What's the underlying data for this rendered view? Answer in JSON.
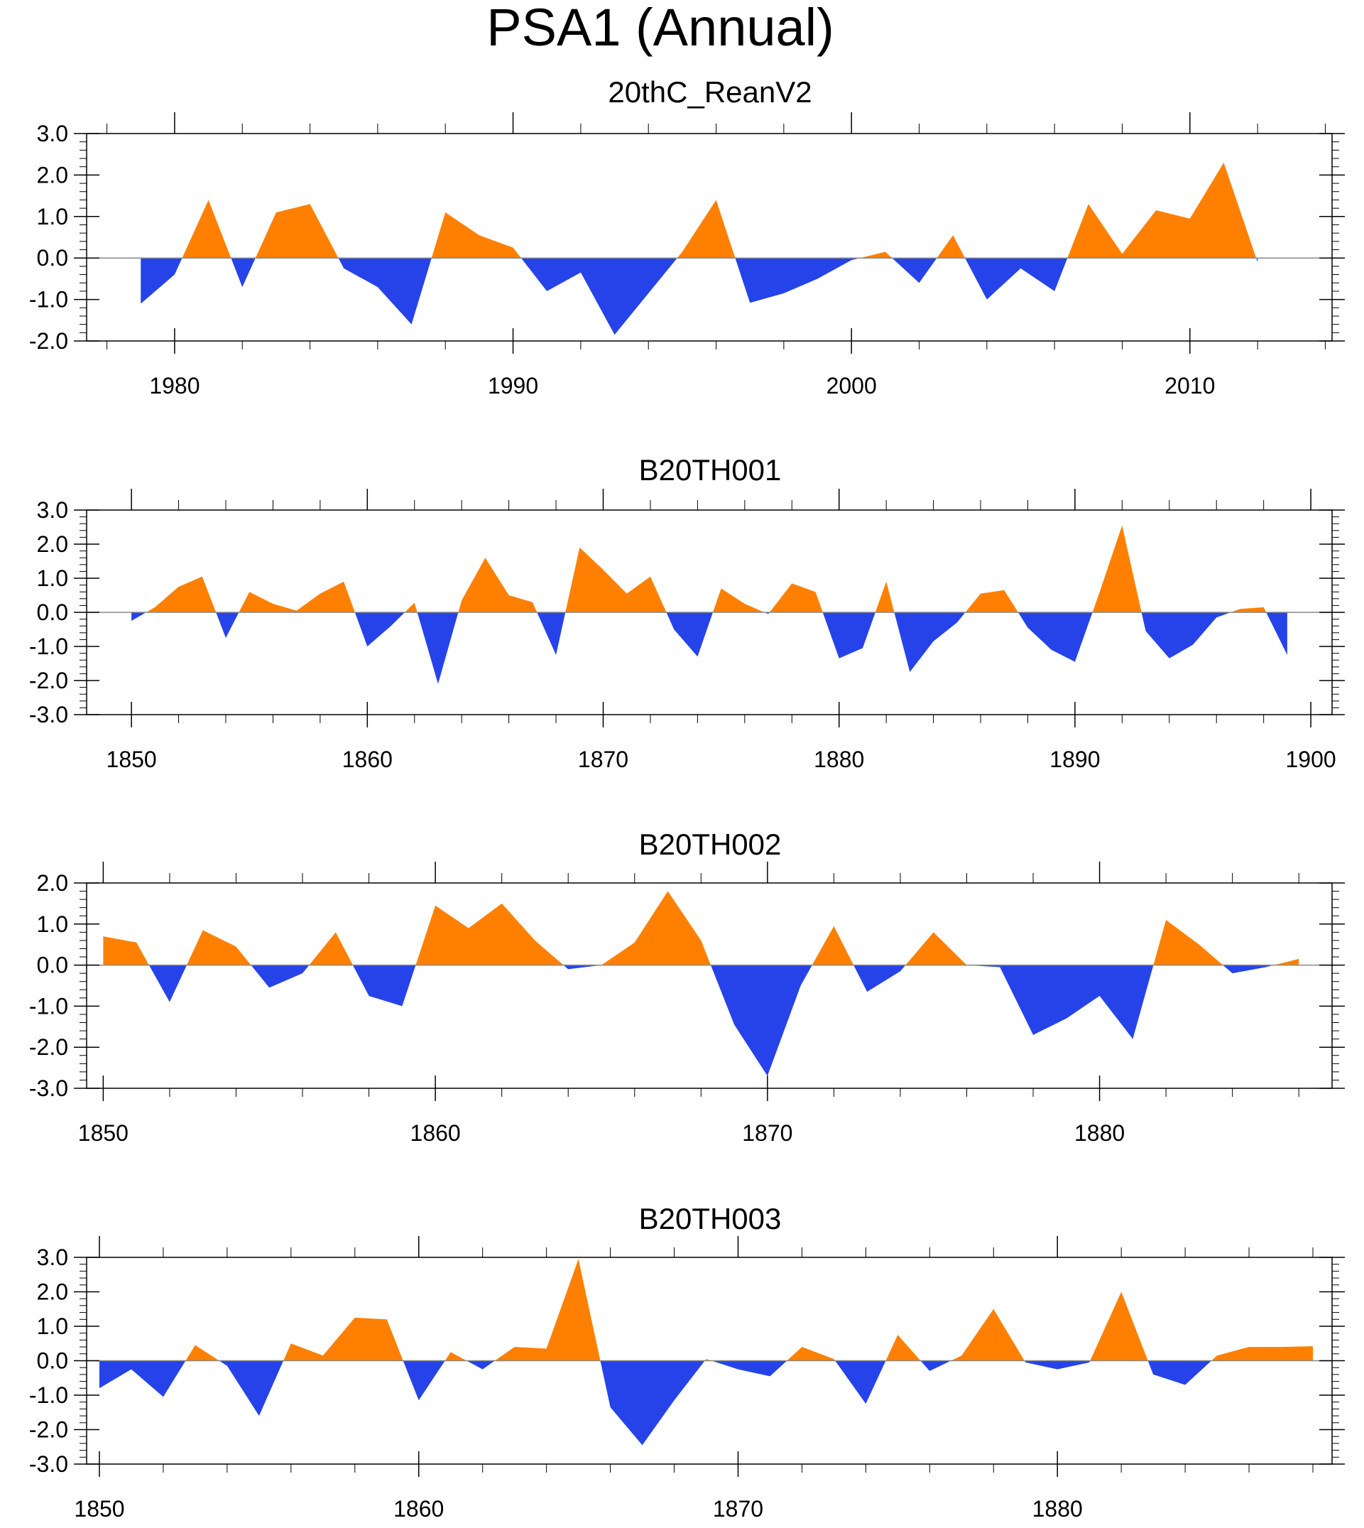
{
  "title": "PSA1 (Annual)",
  "colors": {
    "positive": "#ff8000",
    "negative": "#2643ea",
    "zero_line": "#888888"
  },
  "chart_data": [
    {
      "type": "area",
      "title": "20thC_ReanV2",
      "x": [
        1979,
        1980,
        1981,
        1982,
        1983,
        1984,
        1985,
        1986,
        1987,
        1988,
        1989,
        1990,
        1991,
        1992,
        1993,
        1994,
        1995,
        1996,
        1997,
        1998,
        1999,
        2000,
        2001,
        2002,
        2003,
        2004,
        2005,
        2006,
        2007,
        2008,
        2009,
        2010,
        2011,
        2012
      ],
      "values": [
        -1.1,
        -0.4,
        1.4,
        -0.7,
        1.1,
        1.3,
        -0.25,
        -0.7,
        -1.6,
        1.1,
        0.55,
        0.25,
        -0.8,
        -0.35,
        -1.85,
        -0.85,
        0.15,
        1.4,
        -1.08,
        -0.85,
        -0.5,
        -0.05,
        0.15,
        -0.6,
        0.55,
        -1.0,
        -0.25,
        -0.8,
        1.3,
        0.1,
        1.15,
        0.95,
        2.3,
        -0.1
      ],
      "xlim": [
        1977.4,
        2014.2
      ],
      "ylim": [
        -2.0,
        3.0
      ],
      "yticks": [
        -2.0,
        -1.0,
        0.0,
        1.0,
        2.0,
        3.0
      ],
      "ytick_labels": [
        "-2.0",
        "-1.0",
        "0.0",
        "1.0",
        "2.0",
        "3.0"
      ],
      "xticks": [
        1980,
        1990,
        2000,
        2010
      ],
      "xtick_labels": [
        "1980",
        "1990",
        "2000",
        "2010"
      ],
      "xminor_step": 2
    },
    {
      "type": "area",
      "title": "B20TH001",
      "x": [
        1850,
        1851,
        1852,
        1853,
        1854,
        1855,
        1856,
        1857,
        1858,
        1859,
        1860,
        1861,
        1862,
        1863,
        1864,
        1865,
        1866,
        1867,
        1868,
        1869,
        1870,
        1871,
        1872,
        1873,
        1874,
        1875,
        1876,
        1877,
        1878,
        1879,
        1880,
        1881,
        1882,
        1883,
        1884,
        1885,
        1886,
        1887,
        1888,
        1889,
        1890,
        1891,
        1892,
        1893,
        1894,
        1895,
        1896,
        1897,
        1898,
        1899
      ],
      "values": [
        -0.25,
        0.15,
        0.75,
        1.05,
        -0.75,
        0.6,
        0.25,
        0.05,
        0.55,
        0.9,
        -1.0,
        -0.4,
        0.28,
        -2.1,
        0.35,
        1.6,
        0.5,
        0.3,
        -1.25,
        1.9,
        1.25,
        0.55,
        1.05,
        -0.5,
        -1.3,
        0.7,
        0.25,
        -0.05,
        0.85,
        0.6,
        -1.35,
        -1.05,
        0.9,
        -1.75,
        -0.85,
        -0.3,
        0.55,
        0.65,
        -0.45,
        -1.1,
        -1.45,
        0.5,
        2.55,
        -0.55,
        -1.35,
        -0.95,
        -0.15,
        0.1,
        0.15,
        -1.25
      ],
      "xlim": [
        1848.1,
        1900.9
      ],
      "ylim": [
        -3.0,
        3.0
      ],
      "yticks": [
        -3.0,
        -2.0,
        -1.0,
        0.0,
        1.0,
        2.0,
        3.0
      ],
      "ytick_labels": [
        "-3.0",
        "-2.0",
        "-1.0",
        "0.0",
        "1.0",
        "2.0",
        "3.0"
      ],
      "xticks": [
        1850,
        1860,
        1870,
        1880,
        1890,
        1900
      ],
      "xtick_labels": [
        "1850",
        "1860",
        "1870",
        "1880",
        "1890",
        "1900"
      ],
      "xminor_step": 2
    },
    {
      "type": "area",
      "title": "B20TH002",
      "x": [
        1850,
        1851,
        1852,
        1853,
        1854,
        1855,
        1856,
        1857,
        1858,
        1859,
        1860,
        1861,
        1862,
        1863,
        1864,
        1865,
        1866,
        1867,
        1868,
        1869,
        1870,
        1871,
        1872,
        1873,
        1874,
        1875,
        1876,
        1877,
        1878,
        1879,
        1880,
        1881,
        1882,
        1883,
        1884,
        1885,
        1886
      ],
      "values": [
        0.7,
        0.55,
        -0.9,
        0.85,
        0.45,
        -0.55,
        -0.2,
        0.8,
        -0.75,
        -1.0,
        1.45,
        0.9,
        1.5,
        0.6,
        -0.1,
        0.0,
        0.55,
        1.8,
        0.6,
        -1.45,
        -2.7,
        -0.5,
        0.95,
        -0.65,
        -0.15,
        0.8,
        0.0,
        -0.05,
        -1.7,
        -1.3,
        -0.75,
        -1.8,
        1.1,
        0.5,
        -0.2,
        -0.05,
        0.15
      ],
      "xlim": [
        1849.5,
        1887.0
      ],
      "ylim": [
        -3.0,
        2.0
      ],
      "yticks": [
        -3.0,
        -2.0,
        -1.0,
        0.0,
        1.0,
        2.0
      ],
      "ytick_labels": [
        "-3.0",
        "-2.0",
        "-1.0",
        "0.0",
        "1.0",
        "2.0"
      ],
      "xticks": [
        1850,
        1860,
        1870,
        1880
      ],
      "xtick_labels": [
        "1850",
        "1860",
        "1870",
        "1880"
      ],
      "xminor_step": 2
    },
    {
      "type": "area",
      "title": "B20TH003",
      "x": [
        1850,
        1851,
        1852,
        1853,
        1854,
        1855,
        1856,
        1857,
        1858,
        1859,
        1860,
        1861,
        1862,
        1863,
        1864,
        1865,
        1866,
        1867,
        1868,
        1869,
        1870,
        1871,
        1872,
        1873,
        1874,
        1875,
        1876,
        1877,
        1878,
        1879,
        1880,
        1881,
        1882,
        1883,
        1884,
        1885,
        1886,
        1887,
        1888
      ],
      "values": [
        -0.8,
        -0.25,
        -1.05,
        0.45,
        -0.15,
        -1.6,
        0.5,
        0.15,
        1.25,
        1.2,
        -1.15,
        0.25,
        -0.25,
        0.4,
        0.35,
        2.95,
        -1.35,
        -2.45,
        -1.15,
        0.05,
        -0.25,
        -0.45,
        0.4,
        0.05,
        -1.25,
        0.75,
        -0.3,
        0.15,
        1.5,
        -0.05,
        -0.25,
        -0.05,
        2.0,
        -0.4,
        -0.7,
        0.15,
        0.4,
        0.4,
        0.42
      ],
      "xlim": [
        1849.6,
        1888.6
      ],
      "ylim": [
        -3.0,
        3.0
      ],
      "yticks": [
        -3.0,
        -2.0,
        -1.0,
        0.0,
        1.0,
        2.0,
        3.0
      ],
      "ytick_labels": [
        "-3.0",
        "-2.0",
        "-1.0",
        "0.0",
        "1.0",
        "2.0",
        "3.0"
      ],
      "xticks": [
        1850,
        1860,
        1870,
        1880
      ],
      "xtick_labels": [
        "1850",
        "1860",
        "1870",
        "1880"
      ],
      "xminor_step": 2
    }
  ]
}
